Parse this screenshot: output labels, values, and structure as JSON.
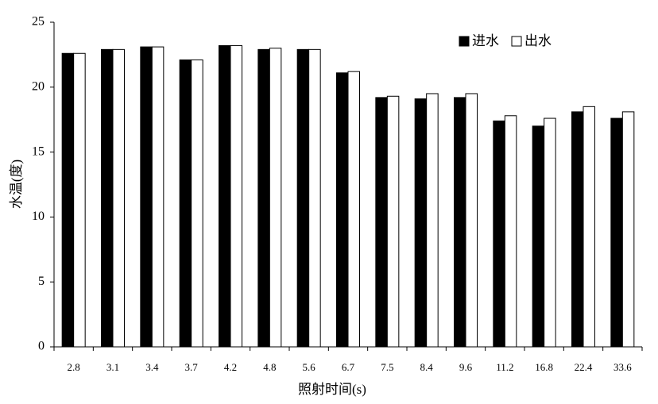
{
  "chart_data": {
    "type": "bar",
    "x_label": "照射时间(s)",
    "y_label": "水温(度)",
    "categories": [
      "2.8",
      "3.1",
      "3.4",
      "3.7",
      "4.2",
      "4.8",
      "5.6",
      "6.7",
      "7.5",
      "8.4",
      "9.6",
      "11.2",
      "16.8",
      "22.4",
      "33.6"
    ],
    "series": [
      {
        "name": "进水",
        "color": "#000000",
        "values": [
          22.6,
          22.9,
          23.1,
          22.1,
          23.2,
          22.9,
          22.9,
          21.1,
          19.2,
          19.1,
          19.2,
          17.4,
          17.0,
          18.1,
          17.6
        ]
      },
      {
        "name": "出水",
        "color": "#ffffff",
        "values": [
          22.6,
          22.9,
          23.1,
          22.1,
          23.2,
          23.0,
          22.9,
          21.2,
          19.3,
          19.5,
          19.5,
          17.8,
          17.6,
          18.5,
          18.1
        ]
      }
    ],
    "ylim": [
      0,
      25
    ],
    "yticks": [
      0,
      5,
      10,
      15,
      20,
      25
    ],
    "grid": false,
    "legend": "top-right"
  }
}
